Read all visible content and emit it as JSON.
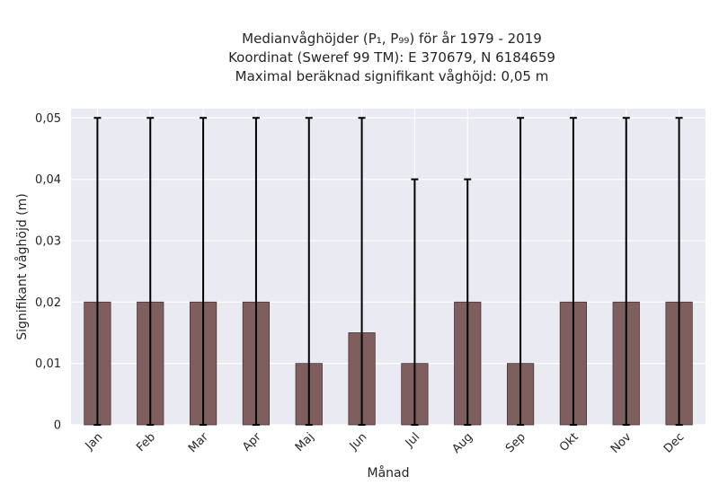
{
  "title_lines": [
    "Medianvåghöjder (P₁, P₉₉) för år 1979 - 2019",
    "Koordinat (Sweref 99 TM): E 370679, N 6184659",
    "Maximal beräknad signifikant våghöjd: 0,05 m"
  ],
  "chart_data": {
    "type": "bar",
    "xlabel": "Månad",
    "ylabel": "Signifikant våghöjd (m)",
    "categories": [
      "Jan",
      "Feb",
      "Mar",
      "Apr",
      "Maj",
      "Jun",
      "Jul",
      "Aug",
      "Sep",
      "Okt",
      "Nov",
      "Dec"
    ],
    "values": [
      0.02,
      0.02,
      0.02,
      0.02,
      0.01,
      0.015,
      0.01,
      0.02,
      0.01,
      0.02,
      0.02,
      0.02
    ],
    "error_low": [
      0,
      0,
      0,
      0,
      0,
      0,
      0,
      0,
      0,
      0,
      0,
      0
    ],
    "error_high": [
      0.05,
      0.05,
      0.05,
      0.05,
      0.05,
      0.05,
      0.04,
      0.04,
      0.05,
      0.05,
      0.05,
      0.05
    ],
    "ylim": [
      0,
      0.0515
    ],
    "yticks": [
      0,
      0.01,
      0.02,
      0.03,
      0.04,
      0.05
    ],
    "ytick_labels": [
      "0",
      "0,01",
      "0,02",
      "0,03",
      "0,04",
      "0,05"
    ],
    "grid": true,
    "colors": {
      "bar": "#7f5e5e",
      "bar_edge": "#4a3535",
      "errorbar": "#000000",
      "plot_background": "#eaeaf2",
      "grid": "#ffffff"
    }
  }
}
